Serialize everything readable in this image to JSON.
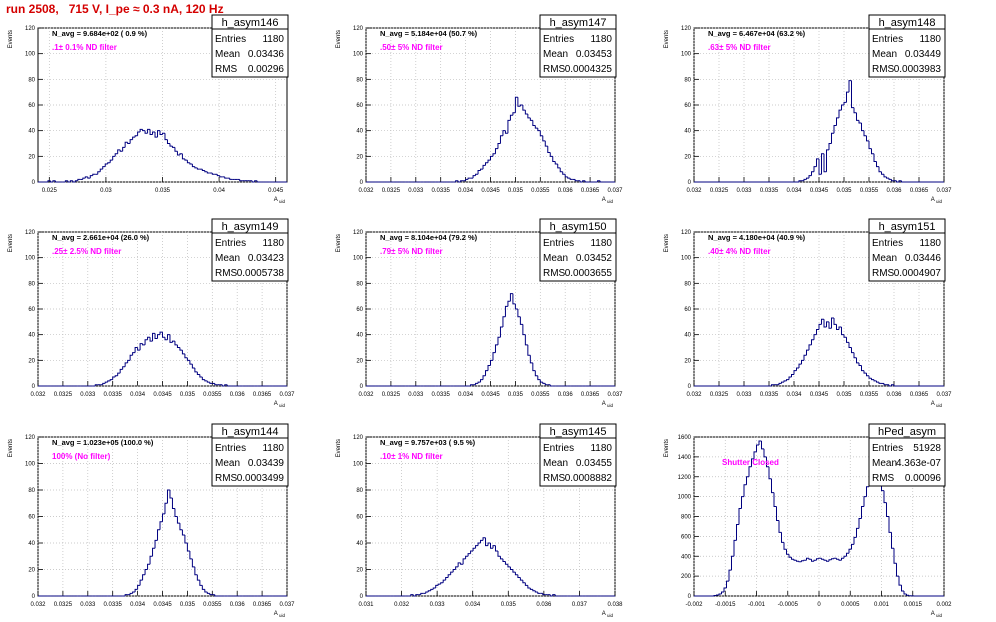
{
  "page_title": "run 2508,   715 V, I_pe ≈ 0.3 nA, 120 Hz",
  "colors": {
    "hist": "#000080",
    "grid": "#bbbbbb",
    "info": "#000000",
    "note": "#ff00ff",
    "title": "#d40000"
  },
  "stats_labels": [
    "Entries",
    "Mean",
    "RMS"
  ],
  "chart_data": [
    {
      "type": "histogram",
      "name": "h_asym146",
      "info": "N_avg = 9.684e+02 ( 0.9 %)",
      "note": ".1± 0.1% ND filter",
      "stats": [
        "1180",
        "0.03436",
        "0.00296"
      ],
      "ylabel": "Events",
      "xlabel": "A_uid",
      "xlim": [
        0.024,
        0.046
      ],
      "ylim": [
        0,
        120
      ],
      "xticks": [
        0.025,
        0.03,
        0.035,
        0.04,
        0.045
      ],
      "xtick_labels": [
        "0.025",
        "0.03",
        "0.035",
        "0.04",
        "0.045"
      ],
      "yticks": [
        0,
        20,
        40,
        60,
        80,
        100,
        120
      ],
      "values": [
        0,
        0,
        0,
        0,
        1,
        0,
        1,
        0,
        0,
        0,
        0,
        1,
        0,
        1,
        0,
        1,
        2,
        2,
        3,
        4,
        3,
        5,
        6,
        6,
        8,
        10,
        12,
        14,
        15,
        17,
        20,
        22,
        25,
        24,
        27,
        31,
        30,
        33,
        35,
        36,
        39,
        41,
        40,
        38,
        41,
        37,
        39,
        35,
        40,
        37,
        38,
        33,
        30,
        28,
        27,
        24,
        21,
        22,
        18,
        17,
        15,
        14,
        12,
        11,
        10,
        10,
        9,
        8,
        7,
        7,
        6,
        6,
        5,
        4,
        4,
        3,
        3,
        2,
        2,
        2,
        2,
        1,
        1,
        1,
        1,
        1,
        0,
        1,
        0,
        0,
        0,
        0,
        0,
        0,
        0,
        0,
        0,
        0,
        0,
        0
      ]
    },
    {
      "type": "histogram",
      "name": "h_asym147",
      "info": "N_avg = 5.184e+04 (50.7 %)",
      "note": ".50± 5% ND filter",
      "stats": [
        "1180",
        "0.03453",
        "0.0004325"
      ],
      "ylabel": "Events",
      "xlabel": "A_uid",
      "xlim": [
        0.032,
        0.037
      ],
      "ylim": [
        0,
        120
      ],
      "xticks": [
        0.032,
        0.0325,
        0.033,
        0.0335,
        0.034,
        0.0345,
        0.035,
        0.0355,
        0.036,
        0.0365,
        0.037
      ],
      "xtick_labels": [
        "0.032",
        "0.0325",
        "0.033",
        "0.0335",
        "0.034",
        "0.0345",
        "0.035",
        "0.0355",
        "0.036",
        "0.0365",
        "0.037"
      ],
      "yticks": [
        0,
        20,
        40,
        60,
        80,
        100,
        120
      ],
      "values": [
        0,
        0,
        0,
        0,
        0,
        0,
        0,
        0,
        0,
        0,
        0,
        0,
        0,
        0,
        0,
        0,
        0,
        0,
        0,
        0,
        0,
        0,
        0,
        0,
        0,
        0,
        0,
        0,
        0,
        0,
        0,
        0,
        0,
        0,
        0,
        0,
        1,
        0,
        1,
        1,
        2,
        3,
        3,
        5,
        6,
        9,
        10,
        13,
        15,
        17,
        20,
        22,
        26,
        30,
        36,
        40,
        38,
        48,
        52,
        54,
        66,
        59,
        60,
        56,
        53,
        50,
        48,
        44,
        42,
        40,
        36,
        32,
        28,
        23,
        20,
        16,
        14,
        11,
        8,
        6,
        4,
        3,
        2,
        2,
        1,
        1,
        0,
        1,
        0,
        0,
        0,
        0,
        0,
        1,
        0,
        0,
        0,
        0,
        0,
        0
      ]
    },
    {
      "type": "histogram",
      "name": "h_asym148",
      "info": "N_avg = 6.467e+04 (63.2 %)",
      "note": ".63± 5% ND filter",
      "stats": [
        "1180",
        "0.03449",
        "0.0003983"
      ],
      "ylabel": "Events",
      "xlabel": "A_uid",
      "xlim": [
        0.032,
        0.037
      ],
      "ylim": [
        0,
        120
      ],
      "xticks": [
        0.032,
        0.0325,
        0.033,
        0.0335,
        0.034,
        0.0345,
        0.035,
        0.0355,
        0.036,
        0.0365,
        0.037
      ],
      "xtick_labels": [
        "0.032",
        "0.0325",
        "0.033",
        "0.0335",
        "0.034",
        "0.0345",
        "0.035",
        "0.0355",
        "0.036",
        "0.0365",
        "0.037"
      ],
      "yticks": [
        0,
        20,
        40,
        60,
        80,
        100,
        120
      ],
      "values": [
        0,
        0,
        0,
        0,
        0,
        0,
        0,
        0,
        0,
        0,
        0,
        0,
        0,
        0,
        0,
        0,
        0,
        0,
        0,
        0,
        0,
        0,
        0,
        0,
        0,
        0,
        0,
        0,
        0,
        0,
        0,
        0,
        0,
        0,
        0,
        0,
        0,
        0,
        0,
        0,
        0,
        0,
        1,
        1,
        2,
        3,
        5,
        8,
        12,
        18,
        6,
        22,
        8,
        25,
        30,
        38,
        44,
        50,
        56,
        60,
        62,
        70,
        79,
        58,
        54,
        48,
        46,
        40,
        36,
        32,
        26,
        22,
        16,
        12,
        8,
        6,
        4,
        3,
        2,
        1,
        1,
        0,
        1,
        0,
        0,
        0,
        0,
        0,
        0,
        0,
        0,
        0,
        0,
        0,
        0,
        0,
        0,
        0,
        0,
        0
      ]
    },
    {
      "type": "histogram",
      "name": "h_asym149",
      "info": "N_avg = 2.661e+04 (26.0 %)",
      "note": ".25± 2.5% ND filter",
      "stats": [
        "1180",
        "0.03423",
        "0.0005738"
      ],
      "ylabel": "Events",
      "xlabel": "A_uid",
      "xlim": [
        0.032,
        0.037
      ],
      "ylim": [
        0,
        120
      ],
      "xticks": [
        0.032,
        0.0325,
        0.033,
        0.0335,
        0.034,
        0.0345,
        0.035,
        0.0355,
        0.036,
        0.0365,
        0.037
      ],
      "xtick_labels": [
        "0.032",
        "0.0325",
        "0.033",
        "0.0335",
        "0.034",
        "0.0345",
        "0.035",
        "0.0355",
        "0.036",
        "0.0365",
        "0.037"
      ],
      "yticks": [
        0,
        20,
        40,
        60,
        80,
        100,
        120
      ],
      "values": [
        0,
        0,
        0,
        0,
        0,
        0,
        0,
        0,
        0,
        0,
        0,
        0,
        0,
        0,
        0,
        0,
        0,
        0,
        0,
        0,
        0,
        0,
        0,
        1,
        1,
        1,
        2,
        3,
        4,
        5,
        7,
        8,
        10,
        13,
        15,
        18,
        20,
        24,
        26,
        30,
        28,
        33,
        32,
        36,
        38,
        35,
        41,
        37,
        40,
        42,
        38,
        36,
        40,
        34,
        35,
        32,
        30,
        28,
        25,
        22,
        20,
        17,
        14,
        11,
        9,
        7,
        5,
        4,
        3,
        2,
        2,
        1,
        1,
        1,
        0,
        1,
        0,
        0,
        0,
        0,
        0,
        0,
        0,
        0,
        0,
        0,
        0,
        0,
        0,
        0,
        0,
        0,
        0,
        0,
        0,
        0,
        0,
        0,
        0,
        0
      ]
    },
    {
      "type": "histogram",
      "name": "h_asym150",
      "info": "N_avg = 8.104e+04 (79.2 %)",
      "note": ".79± 5% ND filter",
      "stats": [
        "1180",
        "0.03452",
        "0.0003655"
      ],
      "ylabel": "Events",
      "xlabel": "A_uid",
      "xlim": [
        0.032,
        0.037
      ],
      "ylim": [
        0,
        120
      ],
      "xticks": [
        0.032,
        0.0325,
        0.033,
        0.0335,
        0.034,
        0.0345,
        0.035,
        0.0355,
        0.036,
        0.0365,
        0.037
      ],
      "xtick_labels": [
        "0.032",
        "0.0325",
        "0.033",
        "0.0335",
        "0.034",
        "0.0345",
        "0.035",
        "0.0355",
        "0.036",
        "0.0365",
        "0.037"
      ],
      "yticks": [
        0,
        20,
        40,
        60,
        80,
        100,
        120
      ],
      "values": [
        0,
        0,
        0,
        0,
        0,
        0,
        0,
        0,
        0,
        0,
        0,
        0,
        0,
        0,
        0,
        0,
        0,
        0,
        0,
        0,
        0,
        0,
        0,
        0,
        0,
        0,
        0,
        0,
        0,
        0,
        0,
        0,
        0,
        0,
        0,
        0,
        0,
        0,
        0,
        0,
        0,
        0,
        1,
        1,
        2,
        3,
        5,
        8,
        12,
        16,
        20,
        26,
        32,
        38,
        46,
        54,
        62,
        66,
        72,
        64,
        60,
        54,
        48,
        40,
        32,
        24,
        18,
        12,
        8,
        5,
        3,
        2,
        1,
        1,
        0,
        0,
        0,
        0,
        0,
        0,
        0,
        0,
        0,
        0,
        0,
        0,
        0,
        0,
        0,
        0,
        0,
        0,
        0,
        0,
        0,
        0,
        0,
        0,
        0,
        0
      ]
    },
    {
      "type": "histogram",
      "name": "h_asym151",
      "info": "N_avg = 4.180e+04 (40.9 %)",
      "note": ".40± 4% ND filter",
      "stats": [
        "1180",
        "0.03446",
        "0.0004907"
      ],
      "ylabel": "Events",
      "xlabel": "A_uid",
      "xlim": [
        0.032,
        0.037
      ],
      "ylim": [
        0,
        120
      ],
      "xticks": [
        0.032,
        0.0325,
        0.033,
        0.0335,
        0.034,
        0.0345,
        0.035,
        0.0355,
        0.036,
        0.0365,
        0.037
      ],
      "xtick_labels": [
        "0.032",
        "0.0325",
        "0.033",
        "0.0335",
        "0.034",
        "0.0345",
        "0.035",
        "0.0355",
        "0.036",
        "0.0365",
        "0.037"
      ],
      "yticks": [
        0,
        20,
        40,
        60,
        80,
        100,
        120
      ],
      "values": [
        0,
        0,
        0,
        0,
        0,
        0,
        0,
        0,
        0,
        0,
        0,
        0,
        0,
        0,
        0,
        0,
        0,
        0,
        0,
        0,
        0,
        0,
        0,
        0,
        0,
        0,
        0,
        0,
        0,
        0,
        0,
        1,
        1,
        1,
        2,
        3,
        4,
        5,
        7,
        9,
        12,
        14,
        17,
        20,
        24,
        28,
        32,
        36,
        40,
        44,
        48,
        52,
        46,
        50,
        45,
        53,
        48,
        44,
        46,
        40,
        38,
        34,
        30,
        26,
        22,
        18,
        16,
        12,
        10,
        8,
        6,
        5,
        4,
        3,
        2,
        2,
        1,
        1,
        0,
        1,
        0,
        0,
        0,
        0,
        0,
        0,
        0,
        0,
        0,
        0,
        0,
        0,
        0,
        0,
        0,
        0,
        0,
        0,
        0,
        0
      ]
    },
    {
      "type": "histogram",
      "name": "h_asym144",
      "info": "N_avg = 1.023e+05 (100.0 %)",
      "note": "100% (No filter)",
      "stats": [
        "1180",
        "0.03439",
        "0.0003499"
      ],
      "ylabel": "Events",
      "xlabel": "A_uid",
      "xlim": [
        0.032,
        0.037
      ],
      "ylim": [
        0,
        120
      ],
      "xticks": [
        0.032,
        0.0325,
        0.033,
        0.0335,
        0.034,
        0.0345,
        0.035,
        0.0355,
        0.036,
        0.0365,
        0.037
      ],
      "xtick_labels": [
        "0.032",
        "0.0325",
        "0.033",
        "0.0335",
        "0.034",
        "0.0345",
        "0.035",
        "0.0355",
        "0.036",
        "0.0365",
        "0.037"
      ],
      "yticks": [
        0,
        20,
        40,
        60,
        80,
        100,
        120
      ],
      "values": [
        0,
        0,
        0,
        0,
        0,
        0,
        0,
        0,
        0,
        0,
        0,
        0,
        0,
        0,
        0,
        0,
        0,
        0,
        0,
        0,
        0,
        0,
        0,
        0,
        0,
        0,
        0,
        0,
        0,
        0,
        0,
        0,
        0,
        0,
        0,
        1,
        1,
        2,
        3,
        5,
        8,
        12,
        16,
        20,
        24,
        30,
        36,
        42,
        50,
        56,
        62,
        70,
        80,
        74,
        66,
        60,
        55,
        50,
        46,
        40,
        34,
        28,
        22,
        16,
        12,
        8,
        5,
        3,
        2,
        1,
        1,
        0,
        0,
        0,
        0,
        0,
        0,
        0,
        0,
        0,
        0,
        0,
        0,
        0,
        0,
        0,
        0,
        0,
        0,
        0,
        0,
        0,
        0,
        0,
        0,
        0,
        0,
        0,
        0,
        0
      ]
    },
    {
      "type": "histogram",
      "name": "h_asym145",
      "info": "N_avg = 9.757e+03 ( 9.5 %)",
      "note": ".10± 1% ND filter",
      "stats": [
        "1180",
        "0.03455",
        "0.0008882"
      ],
      "ylabel": "Events",
      "xlabel": "A_uid",
      "xlim": [
        0.031,
        0.038
      ],
      "ylim": [
        0,
        120
      ],
      "xticks": [
        0.031,
        0.032,
        0.033,
        0.034,
        0.035,
        0.036,
        0.037,
        0.038
      ],
      "xtick_labels": [
        "0.031",
        "0.032",
        "0.033",
        "0.034",
        "0.035",
        "0.036",
        "0.037",
        "0.038"
      ],
      "yticks": [
        0,
        20,
        40,
        60,
        80,
        100,
        120
      ],
      "values": [
        0,
        0,
        0,
        0,
        0,
        0,
        0,
        0,
        0,
        0,
        0,
        0,
        0,
        0,
        0,
        0,
        0,
        0,
        1,
        0,
        1,
        1,
        2,
        2,
        3,
        4,
        5,
        6,
        8,
        9,
        10,
        12,
        14,
        16,
        18,
        20,
        22,
        25,
        24,
        28,
        30,
        32,
        34,
        36,
        38,
        40,
        42,
        44,
        38,
        40,
        36,
        38,
        34,
        30,
        28,
        26,
        24,
        22,
        20,
        18,
        16,
        14,
        12,
        10,
        8,
        6,
        5,
        4,
        3,
        2,
        2,
        1,
        1,
        1,
        0,
        1,
        0,
        0,
        0,
        0,
        0,
        0,
        0,
        0,
        0,
        0,
        0,
        0,
        0,
        0,
        0,
        0,
        0,
        0,
        0,
        0,
        0,
        0,
        0,
        0
      ]
    },
    {
      "type": "histogram",
      "name": "hPed_asym",
      "info": "",
      "note": "Shutter Closed",
      "stats": [
        "51928",
        "4.363e-07",
        "0.00096"
      ],
      "ylabel": "Events",
      "xlabel": "A_uid",
      "xlim": [
        -0.002,
        0.002
      ],
      "ylim": [
        0,
        1600
      ],
      "xticks": [
        -0.002,
        -0.0015,
        -0.001,
        -0.0005,
        0,
        0.0005,
        0.001,
        0.0015,
        0.002
      ],
      "xtick_labels": [
        "-0.002",
        "-0.0015",
        "-0.001",
        "-0.0005",
        "0",
        "0.0005",
        "0.001",
        "0.0015",
        "0.002"
      ],
      "yticks": [
        0,
        200,
        400,
        600,
        800,
        1000,
        1200,
        1400,
        1600
      ],
      "values": [
        0,
        0,
        0,
        0,
        0,
        0,
        0,
        0,
        5,
        10,
        20,
        40,
        80,
        150,
        260,
        400,
        560,
        720,
        880,
        1000,
        1120,
        1200,
        1300,
        1380,
        1450,
        1520,
        1560,
        1480,
        1400,
        1300,
        1180,
        1040,
        900,
        760,
        640,
        540,
        470,
        420,
        390,
        370,
        360,
        350,
        345,
        355,
        360,
        380,
        370,
        350,
        360,
        375,
        380,
        370,
        360,
        350,
        365,
        375,
        380,
        370,
        360,
        380,
        400,
        430,
        470,
        520,
        590,
        680,
        780,
        900,
        1000,
        1100,
        1180,
        1230,
        1250,
        1220,
        1150,
        1060,
        940,
        800,
        640,
        480,
        330,
        200,
        110,
        50,
        20,
        8,
        3,
        1,
        0,
        0,
        0,
        0,
        0,
        0,
        0,
        0,
        0,
        0,
        0,
        0
      ]
    }
  ]
}
